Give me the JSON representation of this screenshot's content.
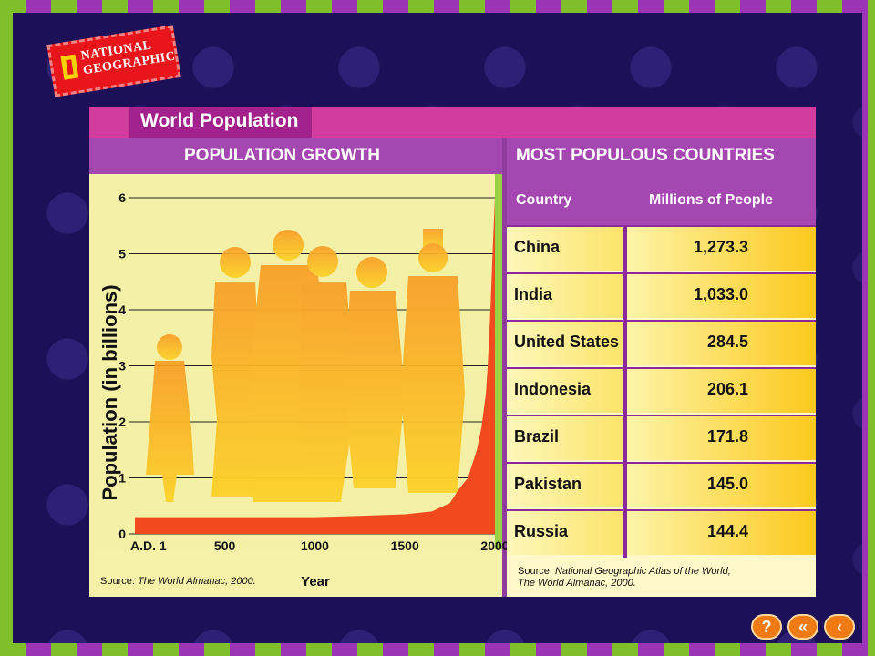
{
  "panel": {
    "title": "World Population",
    "left_header": "POPULATION GROWTH",
    "right_header": "MOST POPULOUS COUNTRIES"
  },
  "logo": {
    "line1": "NATIONAL",
    "line2": "GEOGRAPHIC"
  },
  "chart_data": {
    "type": "area",
    "title": "POPULATION GROWTH",
    "xlabel": "Year",
    "ylabel": "Population (in billions)",
    "x_tick_labels": [
      "A.D. 1",
      "500",
      "1000",
      "1500",
      "2000"
    ],
    "x_ticks": [
      1,
      500,
      1000,
      1500,
      2000
    ],
    "y_ticks": [
      0,
      1,
      2,
      3,
      4,
      5,
      6
    ],
    "xlim": [
      1,
      2000
    ],
    "ylim": [
      0,
      6
    ],
    "grid": true,
    "series": [
      {
        "color": "#f04a1e",
        "x": [
          1,
          500,
          1000,
          1250,
          1500,
          1650,
          1750,
          1800,
          1850,
          1900,
          1925,
          1950,
          1960,
          1975,
          1987,
          2000
        ],
        "values": [
          0.3,
          0.3,
          0.3,
          0.32,
          0.35,
          0.4,
          0.55,
          0.8,
          1.0,
          1.5,
          1.9,
          2.5,
          3.0,
          4.0,
          5.0,
          6.0
        ]
      }
    ],
    "source_label": "Source:",
    "source_text": "The World Almanac, 2000."
  },
  "table": {
    "col_country": "Country",
    "col_millions": "Millions of People",
    "rows": [
      {
        "country": "China",
        "value": "1,273.3"
      },
      {
        "country": "India",
        "value": "1,033.0"
      },
      {
        "country": "United States",
        "value": "284.5"
      },
      {
        "country": "Indonesia",
        "value": "206.1"
      },
      {
        "country": "Brazil",
        "value": "171.8"
      },
      {
        "country": "Pakistan",
        "value": "145.0"
      },
      {
        "country": "Russia",
        "value": "144.4"
      }
    ],
    "source_label": "Source:",
    "source_line1": "National Geographic Atlas of the World;",
    "source_line2": "The World Almanac, 2000."
  },
  "nav": {
    "help": "?",
    "back_double": "«",
    "back": "‹"
  },
  "colors": {
    "accent": "#d23c9f",
    "frame_green": "#7fbf2a",
    "frame_purple": "#9b35b5",
    "bg": "#1c1158"
  }
}
